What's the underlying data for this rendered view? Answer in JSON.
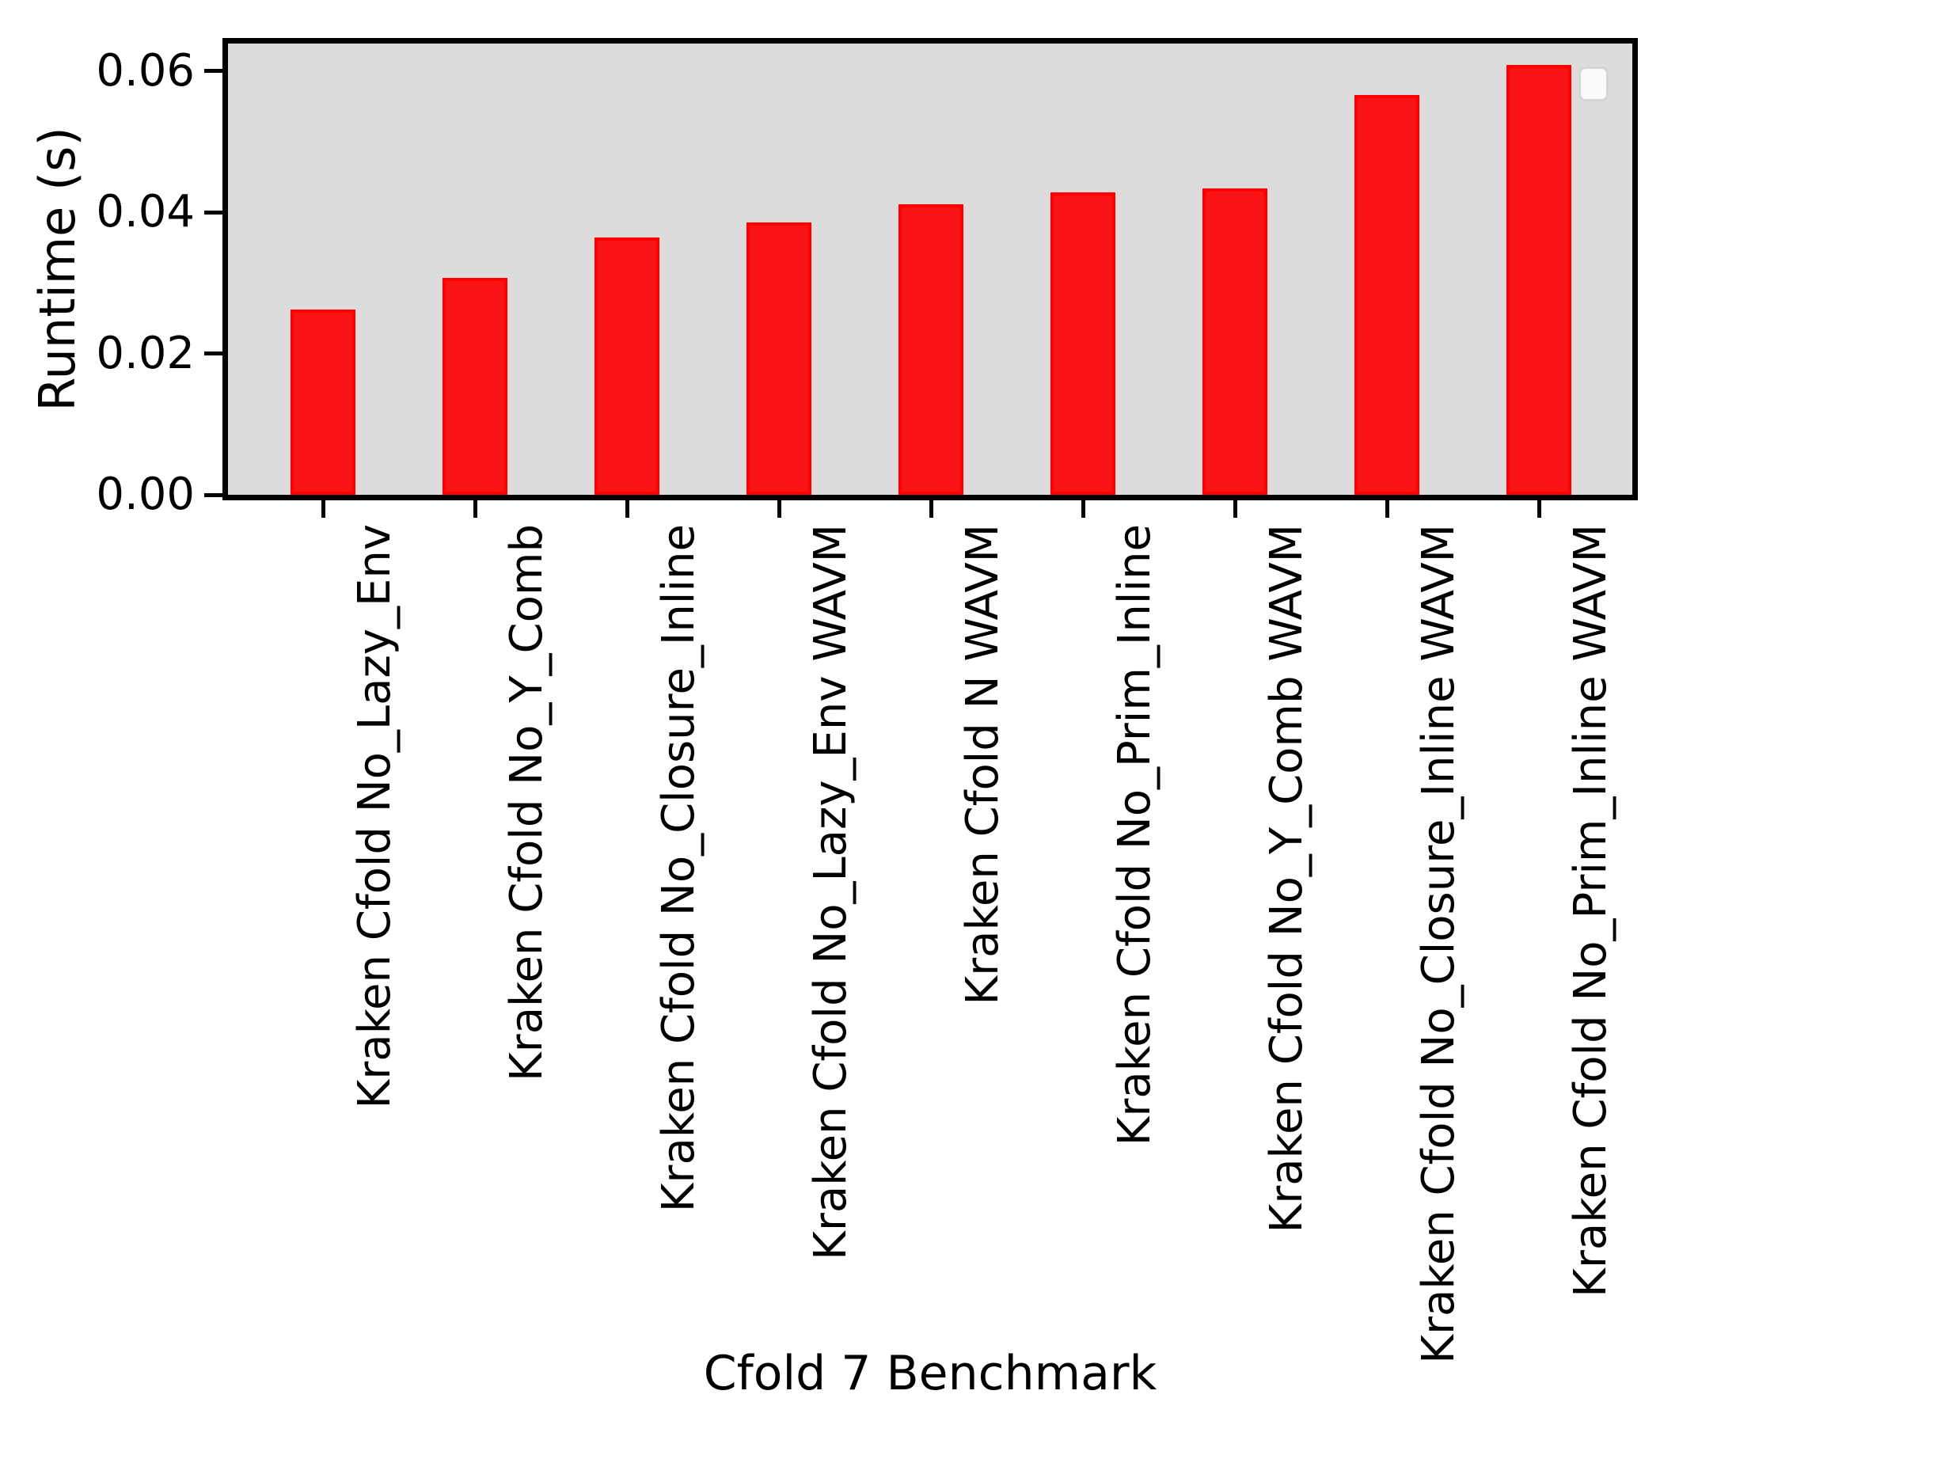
{
  "figure": {
    "ylabel": "Runtime (s)",
    "xlabel": "Cfold 7 Benchmark"
  },
  "chart_data": {
    "type": "bar",
    "title": "",
    "xlabel": "Cfold 7 Benchmark",
    "ylabel": "Runtime (s)",
    "categories": [
      "Kraken Cfold No_Lazy_Env",
      "Kraken Cfold No_Y_Comb",
      "Kraken Cfold No_Closure_Inline",
      "Kraken Cfold No_Lazy_Env WAVM",
      "Kraken Cfold N WAVM",
      "Kraken Cfold No_Prim_Inline",
      "Kraken Cfold No_Y_Comb WAVM",
      "Kraken Cfold No_Closure_Inline WAVM",
      "Kraken Cfold No_Prim_Inline WAVM"
    ],
    "values": [
      0.0262,
      0.0307,
      0.0364,
      0.0386,
      0.0411,
      0.0428,
      0.0434,
      0.0566,
      0.0609
    ],
    "yticks": [
      0.0,
      0.02,
      0.04,
      0.06
    ],
    "ytick_labels": [
      "0.00",
      "0.02",
      "0.04",
      "0.06"
    ],
    "ylim": [
      0,
      0.0639
    ],
    "grid": false,
    "legend": "empty-box-top-right",
    "colors": {
      "bar_fill": "#f81414",
      "bar_edge": "#ff0000",
      "plot_bg": "#dcdcdc",
      "spine": "#000000",
      "legend_bg": "#fbfbfb",
      "legend_border": "#d5d5d5",
      "text": "#000000"
    }
  }
}
